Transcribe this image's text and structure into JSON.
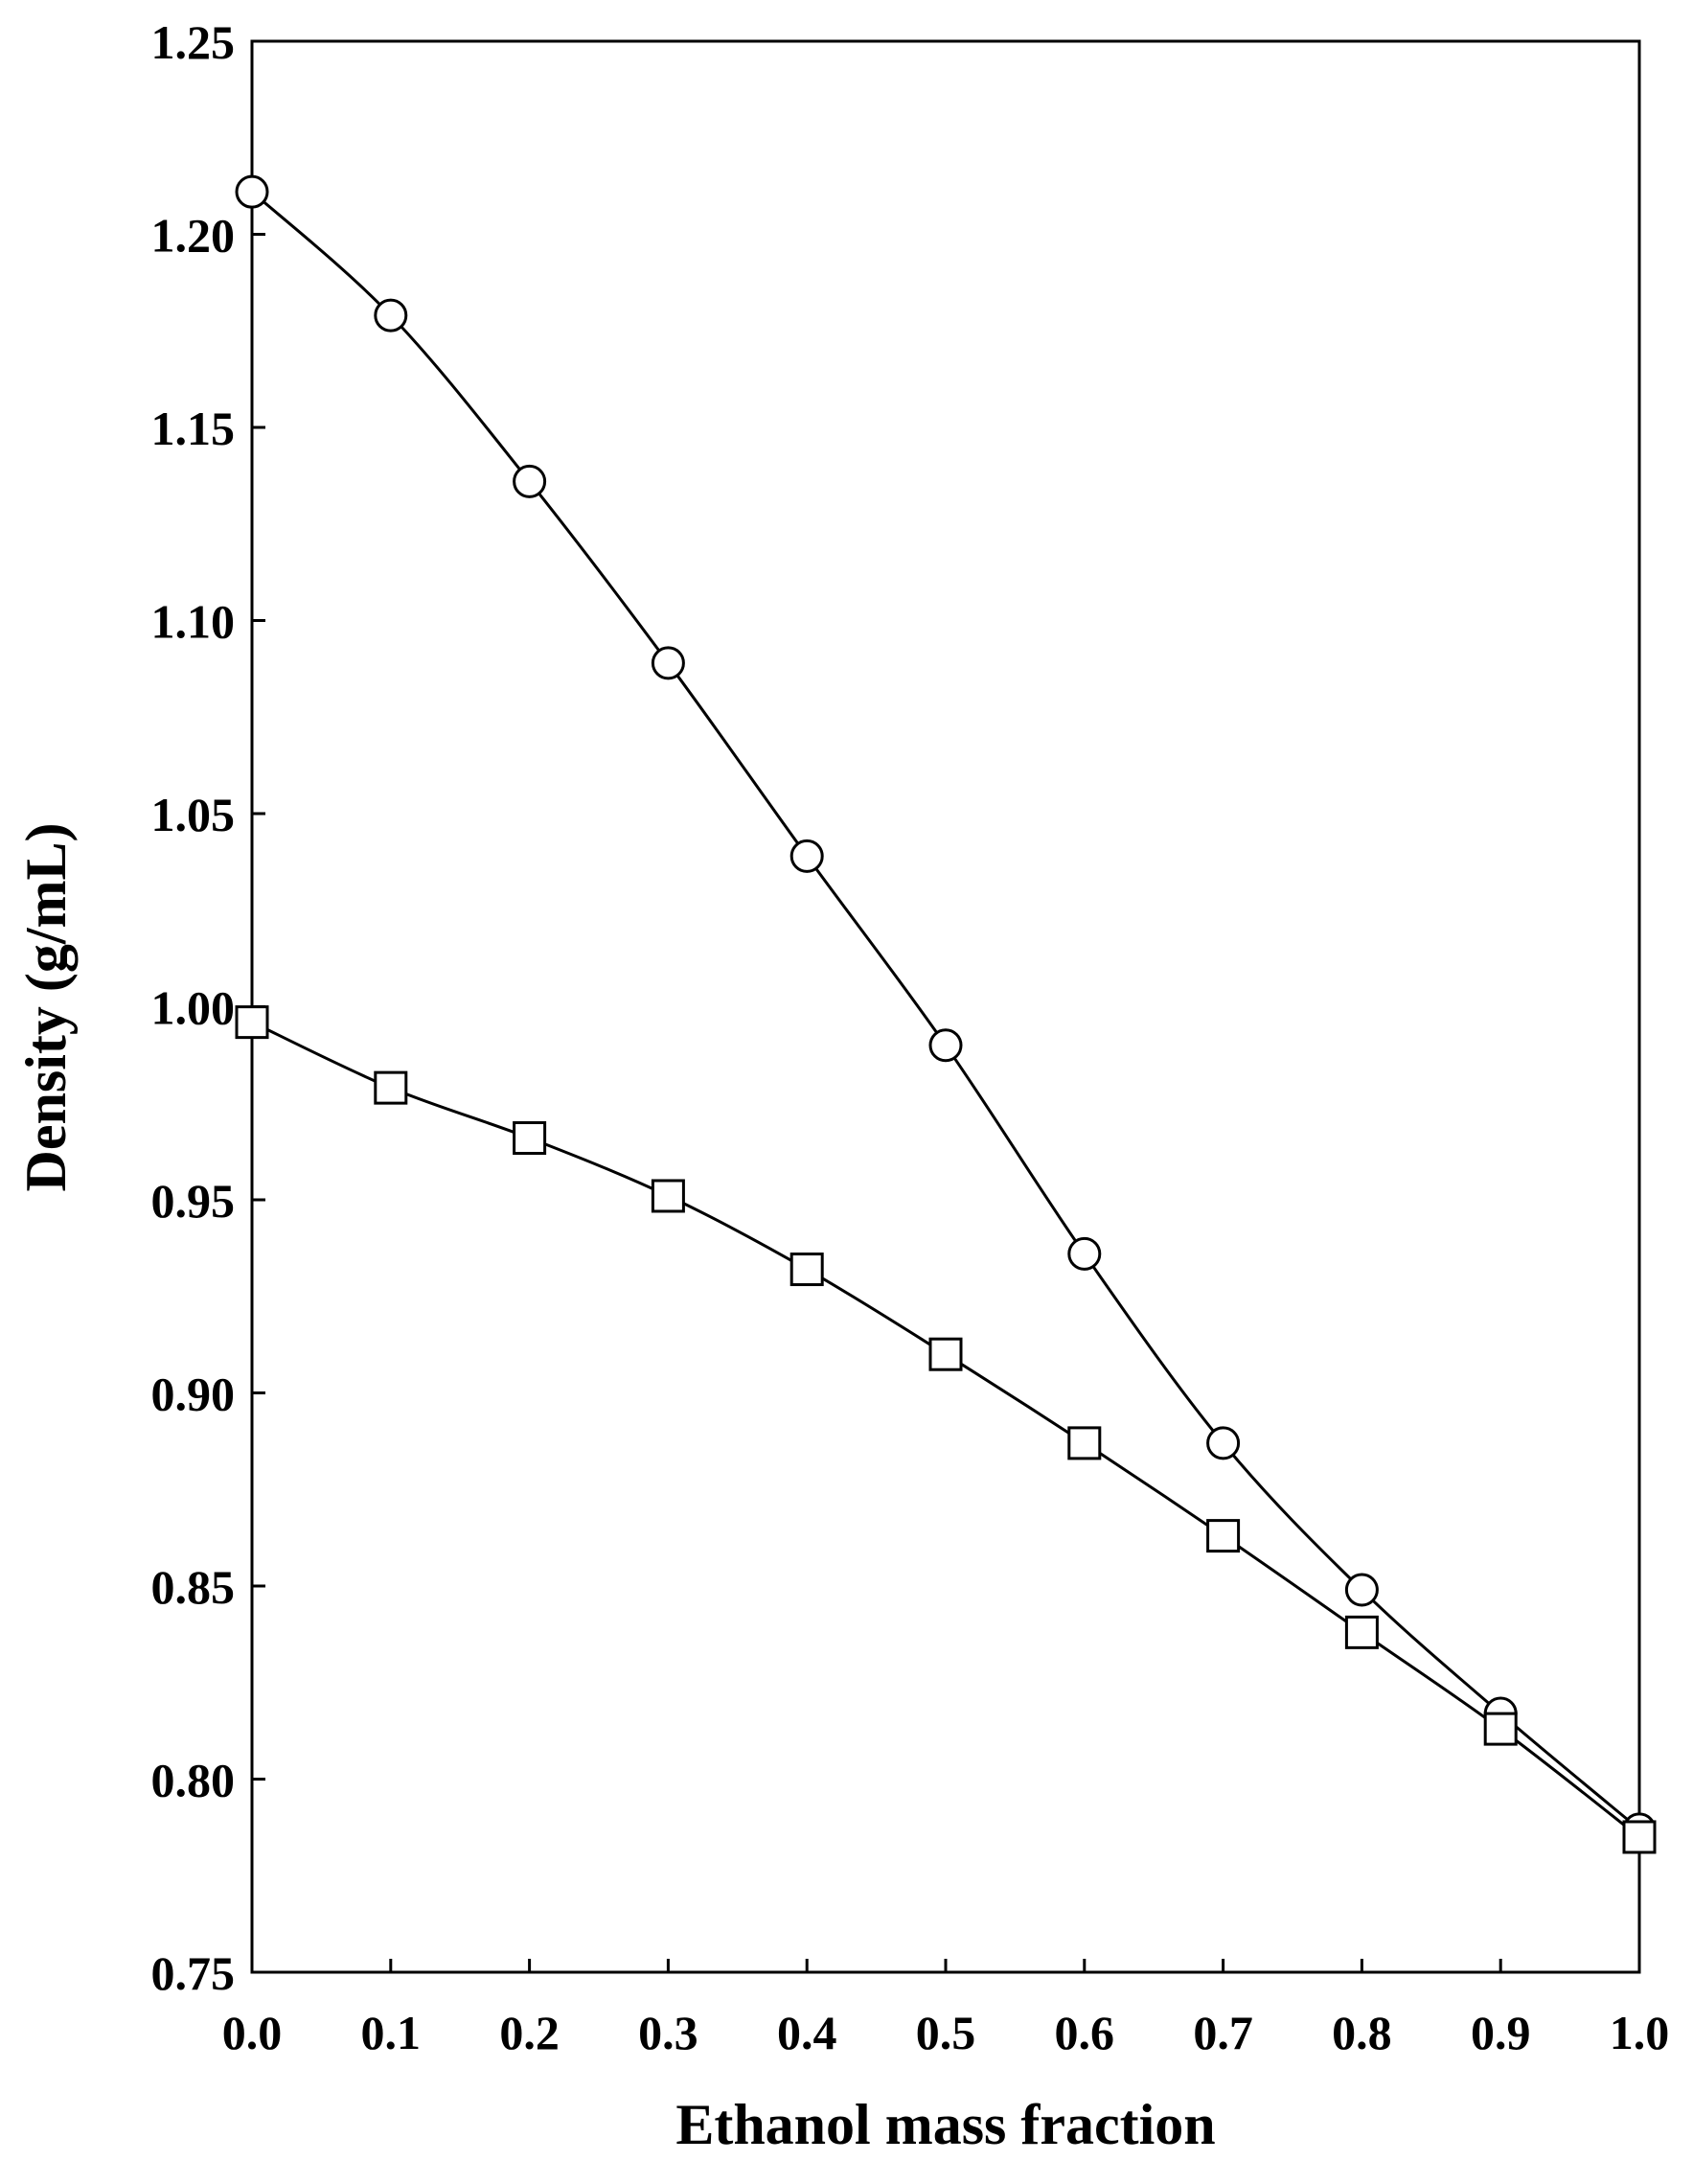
{
  "chart_data": {
    "type": "line",
    "xlabel": "Ethanol mass fraction",
    "ylabel": "Density (g/mL)",
    "xlim": [
      0.0,
      1.0
    ],
    "ylim": [
      0.75,
      1.25
    ],
    "x_ticks": [
      "0.0",
      "0.1",
      "0.2",
      "0.3",
      "0.4",
      "0.5",
      "0.6",
      "0.7",
      "0.8",
      "0.9",
      "1.0"
    ],
    "y_ticks": [
      "0.75",
      "0.80",
      "0.85",
      "0.90",
      "0.95",
      "1.00",
      "1.05",
      "1.10",
      "1.15",
      "1.20",
      "1.25"
    ],
    "grid": false,
    "legend": "none",
    "x": [
      0.0,
      0.1,
      0.2,
      0.3,
      0.4,
      0.5,
      0.6,
      0.7,
      0.8,
      0.9,
      1.0
    ],
    "series": [
      {
        "marker": "circle",
        "values": [
          1.211,
          1.179,
          1.136,
          1.089,
          1.039,
          0.99,
          0.936,
          0.887,
          0.849,
          0.817,
          0.787
        ]
      },
      {
        "marker": "square",
        "values": [
          0.996,
          0.979,
          0.966,
          0.951,
          0.932,
          0.91,
          0.887,
          0.863,
          0.838,
          0.813,
          0.785
        ]
      }
    ],
    "colors": {
      "line": "#000000",
      "marker_fill": "#ffffff"
    }
  }
}
